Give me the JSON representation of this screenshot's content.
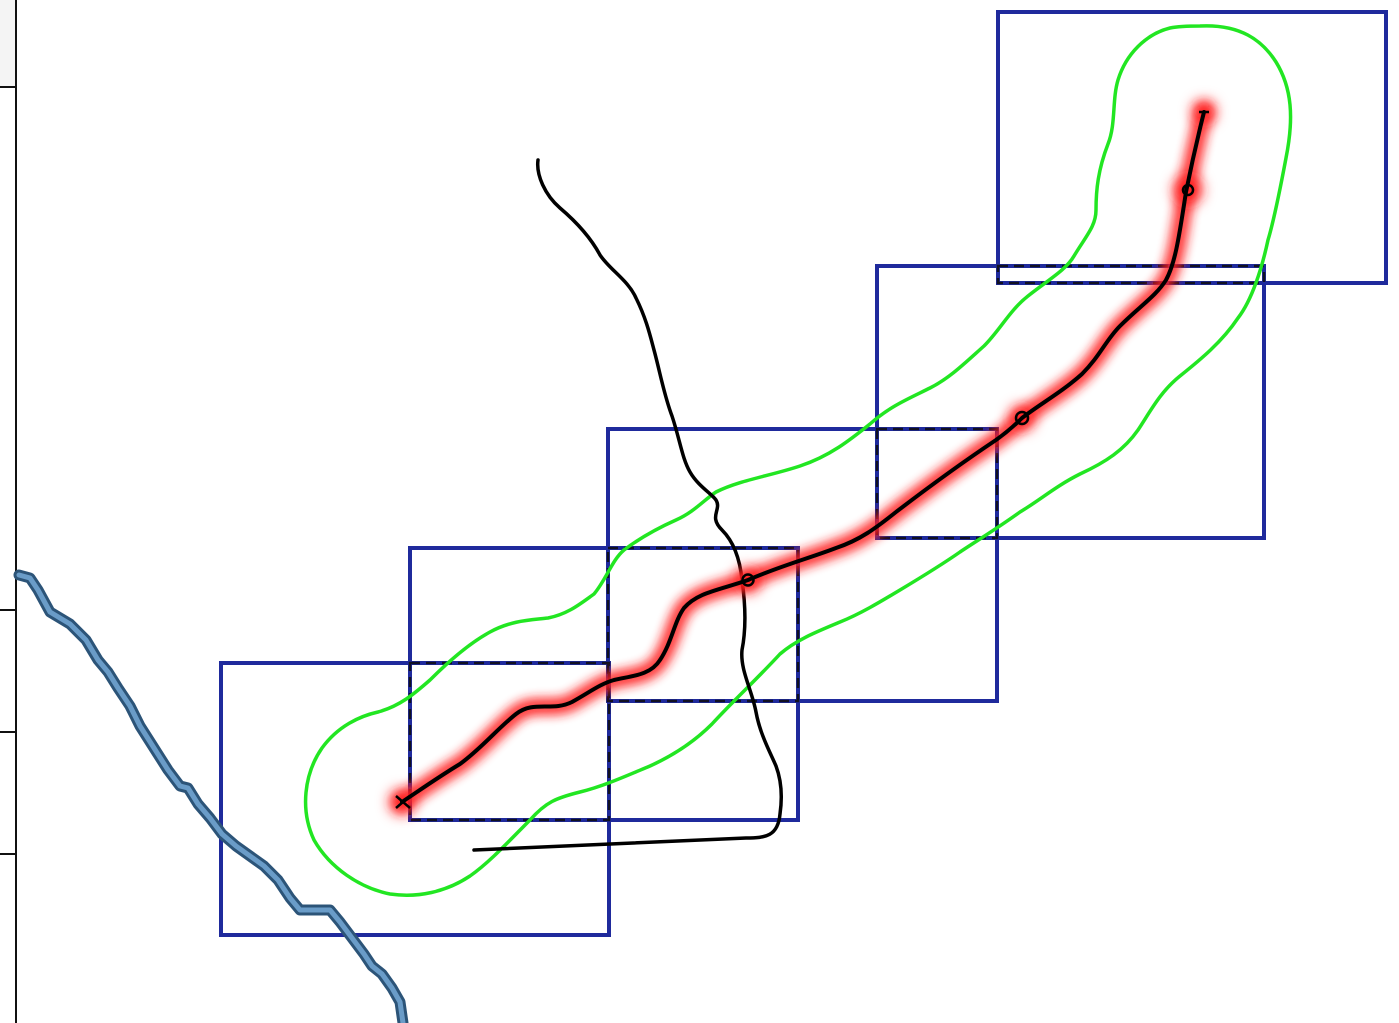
{
  "map": {
    "colors": {
      "background": "#ffffff",
      "grid_tile": "#1f2a9c",
      "tile_overlap": "#111122",
      "buffer": "#22e622",
      "route_glow": "#ff1a1a",
      "route": "#000000",
      "secondary_road": "#000000",
      "river_outline": "#2c5478",
      "river_fill": "#6a9cc8"
    },
    "layers": {
      "grid_tiles": "blue-square-tiles",
      "overlap": "dashed-overlap-areas",
      "buffer": "green-corridor-buffer",
      "route": "highlighted-route",
      "road": "black-road",
      "river": "blue-river"
    },
    "route_markers": {
      "start": "cross-marker-icon",
      "waypoint": "circle-marker-icon",
      "end": "tick-marker-icon"
    }
  }
}
